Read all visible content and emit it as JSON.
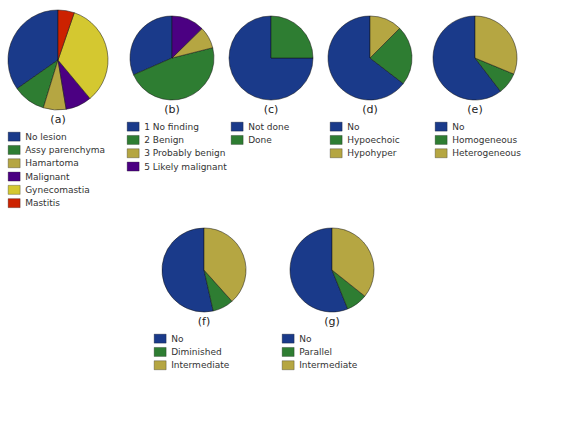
{
  "chart_data": [
    {
      "type": "pie",
      "title": "(a)",
      "categories": [
        "No lesion",
        "Assy parenchyma",
        "Hamartoma",
        "Malignant",
        "Gynecomastia",
        "Mastitis"
      ],
      "values": [
        33,
        10,
        7,
        8,
        32,
        5
      ],
      "colors": [
        "#1a3a8a",
        "#2e7d32",
        "#b5a642",
        "#4b0082",
        "#d4c830",
        "#cc2200"
      ],
      "legend": "bottom"
    },
    {
      "type": "pie",
      "title": "(b)",
      "categories": [
        "1 No finding",
        "2 Benign",
        "3 Probably benign",
        "5 Likely malignant"
      ],
      "values": [
        30,
        45,
        8,
        12
      ],
      "colors": [
        "#1a3a8a",
        "#2e7d32",
        "#b5a642",
        "#4b0082"
      ],
      "legend": "bottom"
    },
    {
      "type": "pie",
      "title": "(c)",
      "categories": [
        "Not done",
        "Done"
      ],
      "values": [
        75,
        25
      ],
      "colors": [
        "#1a3a8a",
        "#2e7d32"
      ],
      "legend": "bottom"
    },
    {
      "type": "pie",
      "title": "(d)",
      "categories": [
        "No",
        "Hypoechoic",
        "Hypohyper"
      ],
      "values": [
        62,
        22,
        12
      ],
      "colors": [
        "#1a3a8a",
        "#2e7d32",
        "#b5a642"
      ],
      "legend": "bottom"
    },
    {
      "type": "pie",
      "title": "(e)",
      "categories": [
        "No",
        "Homogeneous",
        "Heterogeneous"
      ],
      "values": [
        58,
        8,
        30
      ],
      "colors": [
        "#1a3a8a",
        "#2e7d32",
        "#b5a642"
      ],
      "legend": "bottom"
    },
    {
      "type": "pie",
      "title": "(f)",
      "categories": [
        "No",
        "Diminished",
        "Intermediate"
      ],
      "values": [
        53,
        8,
        38
      ],
      "colors": [
        "#1a3a8a",
        "#2e7d32",
        "#b5a642"
      ],
      "legend": "bottom"
    },
    {
      "type": "pie",
      "title": "(g)",
      "categories": [
        "No",
        "Parallel",
        "Intermediate"
      ],
      "values": [
        55,
        8,
        35
      ],
      "colors": [
        "#1a3a8a",
        "#2e7d32",
        "#b5a642"
      ],
      "legend": "bottom"
    }
  ]
}
